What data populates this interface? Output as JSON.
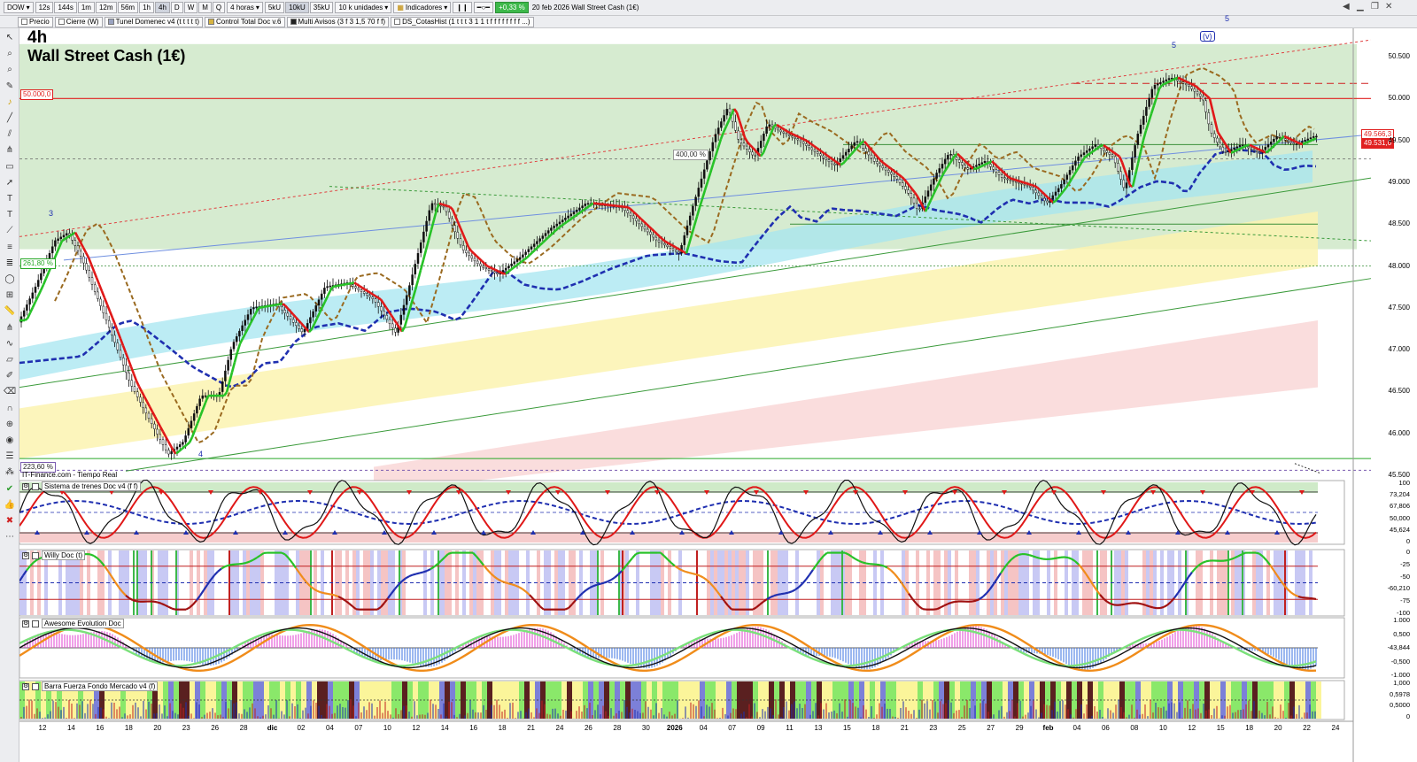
{
  "toolbar": {
    "symbol": "DOW",
    "timeframes": [
      "12s",
      "144s",
      "1m",
      "12m",
      "56m",
      "1h",
      "4h",
      "D",
      "W",
      "M",
      "Q"
    ],
    "active_timeframe": "4h",
    "period": "4 horas",
    "units": [
      "5kU",
      "10kU",
      "35kU"
    ],
    "active_unit": "10kU",
    "volume": "10 k unidades",
    "indicators_label": "Indicadores",
    "change": "+0,33 %",
    "date_title": "20 feb 2026  Wall Street Cash (1€)"
  },
  "indicator_bar": [
    {
      "label": "Precio",
      "color": "#ffffff"
    },
    {
      "label": "Cierre (W)",
      "color": "#ffffff"
    },
    {
      "label": "Tunel Domenec v4 (t t t t t)",
      "color": "#9aa3c0"
    },
    {
      "label": "Control Total Doc v.6",
      "color": "#d7b441"
    },
    {
      "label": "Multi Avisos (3 f 3 1,5 70 f f)",
      "color": "#222222"
    },
    {
      "label": "DS_CotasHist (1 t t t 3 1 1 t f f f f f f f f ...)",
      "color": "#ffffff"
    }
  ],
  "chart": {
    "timeframe_label": "4h",
    "instrument_name": "Wall Street Cash (1€)",
    "source": "IT-Finance.com - Tiempo Real",
    "price_axis": [
      "50.500",
      "50.000",
      "49.500",
      "49.000",
      "48.500",
      "48.000",
      "47.500",
      "47.000",
      "46.500",
      "46.000",
      "45.500"
    ],
    "tags": {
      "level_50000": "50.000,0",
      "fib_261": "261,80 %",
      "fib_223": "223,60 %",
      "fib_400": "400,00 %",
      "last_price": "49.531,0",
      "price_hi": "49.566,3"
    },
    "wave_labels": [
      "3",
      "4",
      "5",
      "(v)",
      "5"
    ]
  },
  "panes": [
    {
      "title": "Sistema de trenes Doc v4 (f f)",
      "axis": [
        "100",
        "73,204",
        "67,806",
        "50,000",
        "45,624",
        "0"
      ]
    },
    {
      "title": "Willy Doc (t)",
      "axis": [
        "0",
        "-25",
        "-50",
        "-60,210",
        "-75",
        "-100"
      ]
    },
    {
      "title": "Awesome Evolution Doc",
      "axis": [
        "1.000",
        "0,500",
        "-43,844",
        "-0,500",
        "-1.000"
      ]
    },
    {
      "title": "Barra Fuerza Fondo Mercado v4 (f)",
      "axis": [
        "1,000",
        "0,5978",
        "0,5000",
        "0"
      ]
    }
  ],
  "x_axis": [
    "12",
    "14",
    "16",
    "18",
    "20",
    "23",
    "26",
    "28",
    "dic",
    "02",
    "04",
    "07",
    "10",
    "12",
    "14",
    "16",
    "18",
    "21",
    "24",
    "26",
    "28",
    "30",
    "2026",
    "04",
    "07",
    "09",
    "11",
    "13",
    "15",
    "18",
    "21",
    "23",
    "25",
    "27",
    "29",
    "feb",
    "04",
    "06",
    "08",
    "10",
    "12",
    "15",
    "18",
    "20",
    "22",
    "24"
  ],
  "colors": {
    "accent_green": "#3db84a",
    "level_red": "#e02020",
    "tunnel_blue": "#1f2fb0",
    "bull_green": "#27c227",
    "bear_red": "#e01818"
  }
}
